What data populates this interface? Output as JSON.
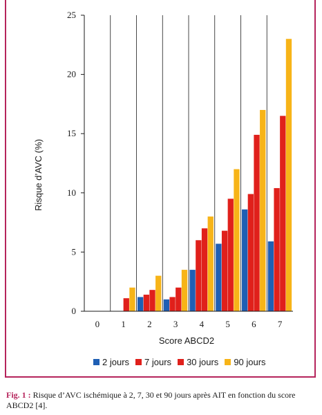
{
  "chart_data": {
    "type": "bar",
    "title": "",
    "xlabel": "Score ABCD2",
    "ylabel": "Risque d’AVC (%)",
    "ylim": [
      0,
      25
    ],
    "yticks": [
      "0",
      "5",
      "10",
      "15",
      "20",
      "25"
    ],
    "categories": [
      "0",
      "1",
      "2",
      "3",
      "4",
      "5",
      "6",
      "7"
    ],
    "grid": "vertical",
    "legend_position": "bottom",
    "series": [
      {
        "name": "2 jours",
        "color": "#1f5fb4",
        "values": [
          0,
          0,
          1.2,
          1.0,
          3.5,
          5.7,
          8.6,
          5.9
        ]
      },
      {
        "name": "7 jours",
        "color": "#e0201b",
        "values": [
          0,
          0,
          1.4,
          1.2,
          6.0,
          6.8,
          9.9,
          10.4
        ]
      },
      {
        "name": "30 jours",
        "color": "#e0201b",
        "values": [
          0,
          1.1,
          1.8,
          2.0,
          7.0,
          9.5,
          14.9,
          16.5
        ]
      },
      {
        "name": "90 jours",
        "color": "#f7b418",
        "values": [
          0,
          2.0,
          3.0,
          3.5,
          8.0,
          12.0,
          17.0,
          23.0
        ]
      }
    ]
  },
  "caption": {
    "label": "Fig. 1 :",
    "text": "Risque d’AVC ischémique à 2, 7, 30 et 90 jours après AIT en fonction du score ABCD2 [4]."
  }
}
